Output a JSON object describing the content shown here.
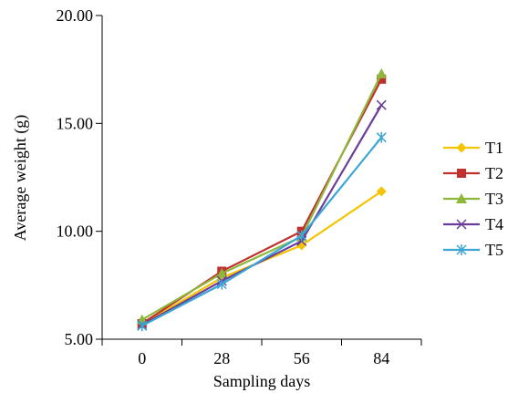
{
  "chart_data": {
    "type": "line",
    "title": "",
    "xlabel": "Sampling days",
    "ylabel": "Average weight (g)",
    "categories": [
      "0",
      "28",
      "56",
      "84"
    ],
    "y_ticks": [
      "5.00",
      "10.00",
      "15.00",
      "20.00"
    ],
    "ylim": [
      5,
      20
    ],
    "grid": false,
    "legend_position": "right",
    "series": [
      {
        "name": "T1",
        "color": "#F5C400",
        "marker": "diamond",
        "values": [
          5.7,
          7.85,
          9.35,
          11.85
        ]
      },
      {
        "name": "T2",
        "color": "#C0302E",
        "marker": "square",
        "values": [
          5.72,
          8.15,
          10.0,
          17.05
        ]
      },
      {
        "name": "T3",
        "color": "#8DB83A",
        "marker": "triangle",
        "values": [
          5.9,
          8.05,
          9.75,
          17.3
        ]
      },
      {
        "name": "T4",
        "color": "#6A3D9A",
        "marker": "x",
        "values": [
          5.65,
          7.7,
          9.55,
          15.85
        ]
      },
      {
        "name": "T5",
        "color": "#3BA6D6",
        "marker": "star",
        "values": [
          5.62,
          7.55,
          9.8,
          14.35
        ]
      }
    ]
  }
}
